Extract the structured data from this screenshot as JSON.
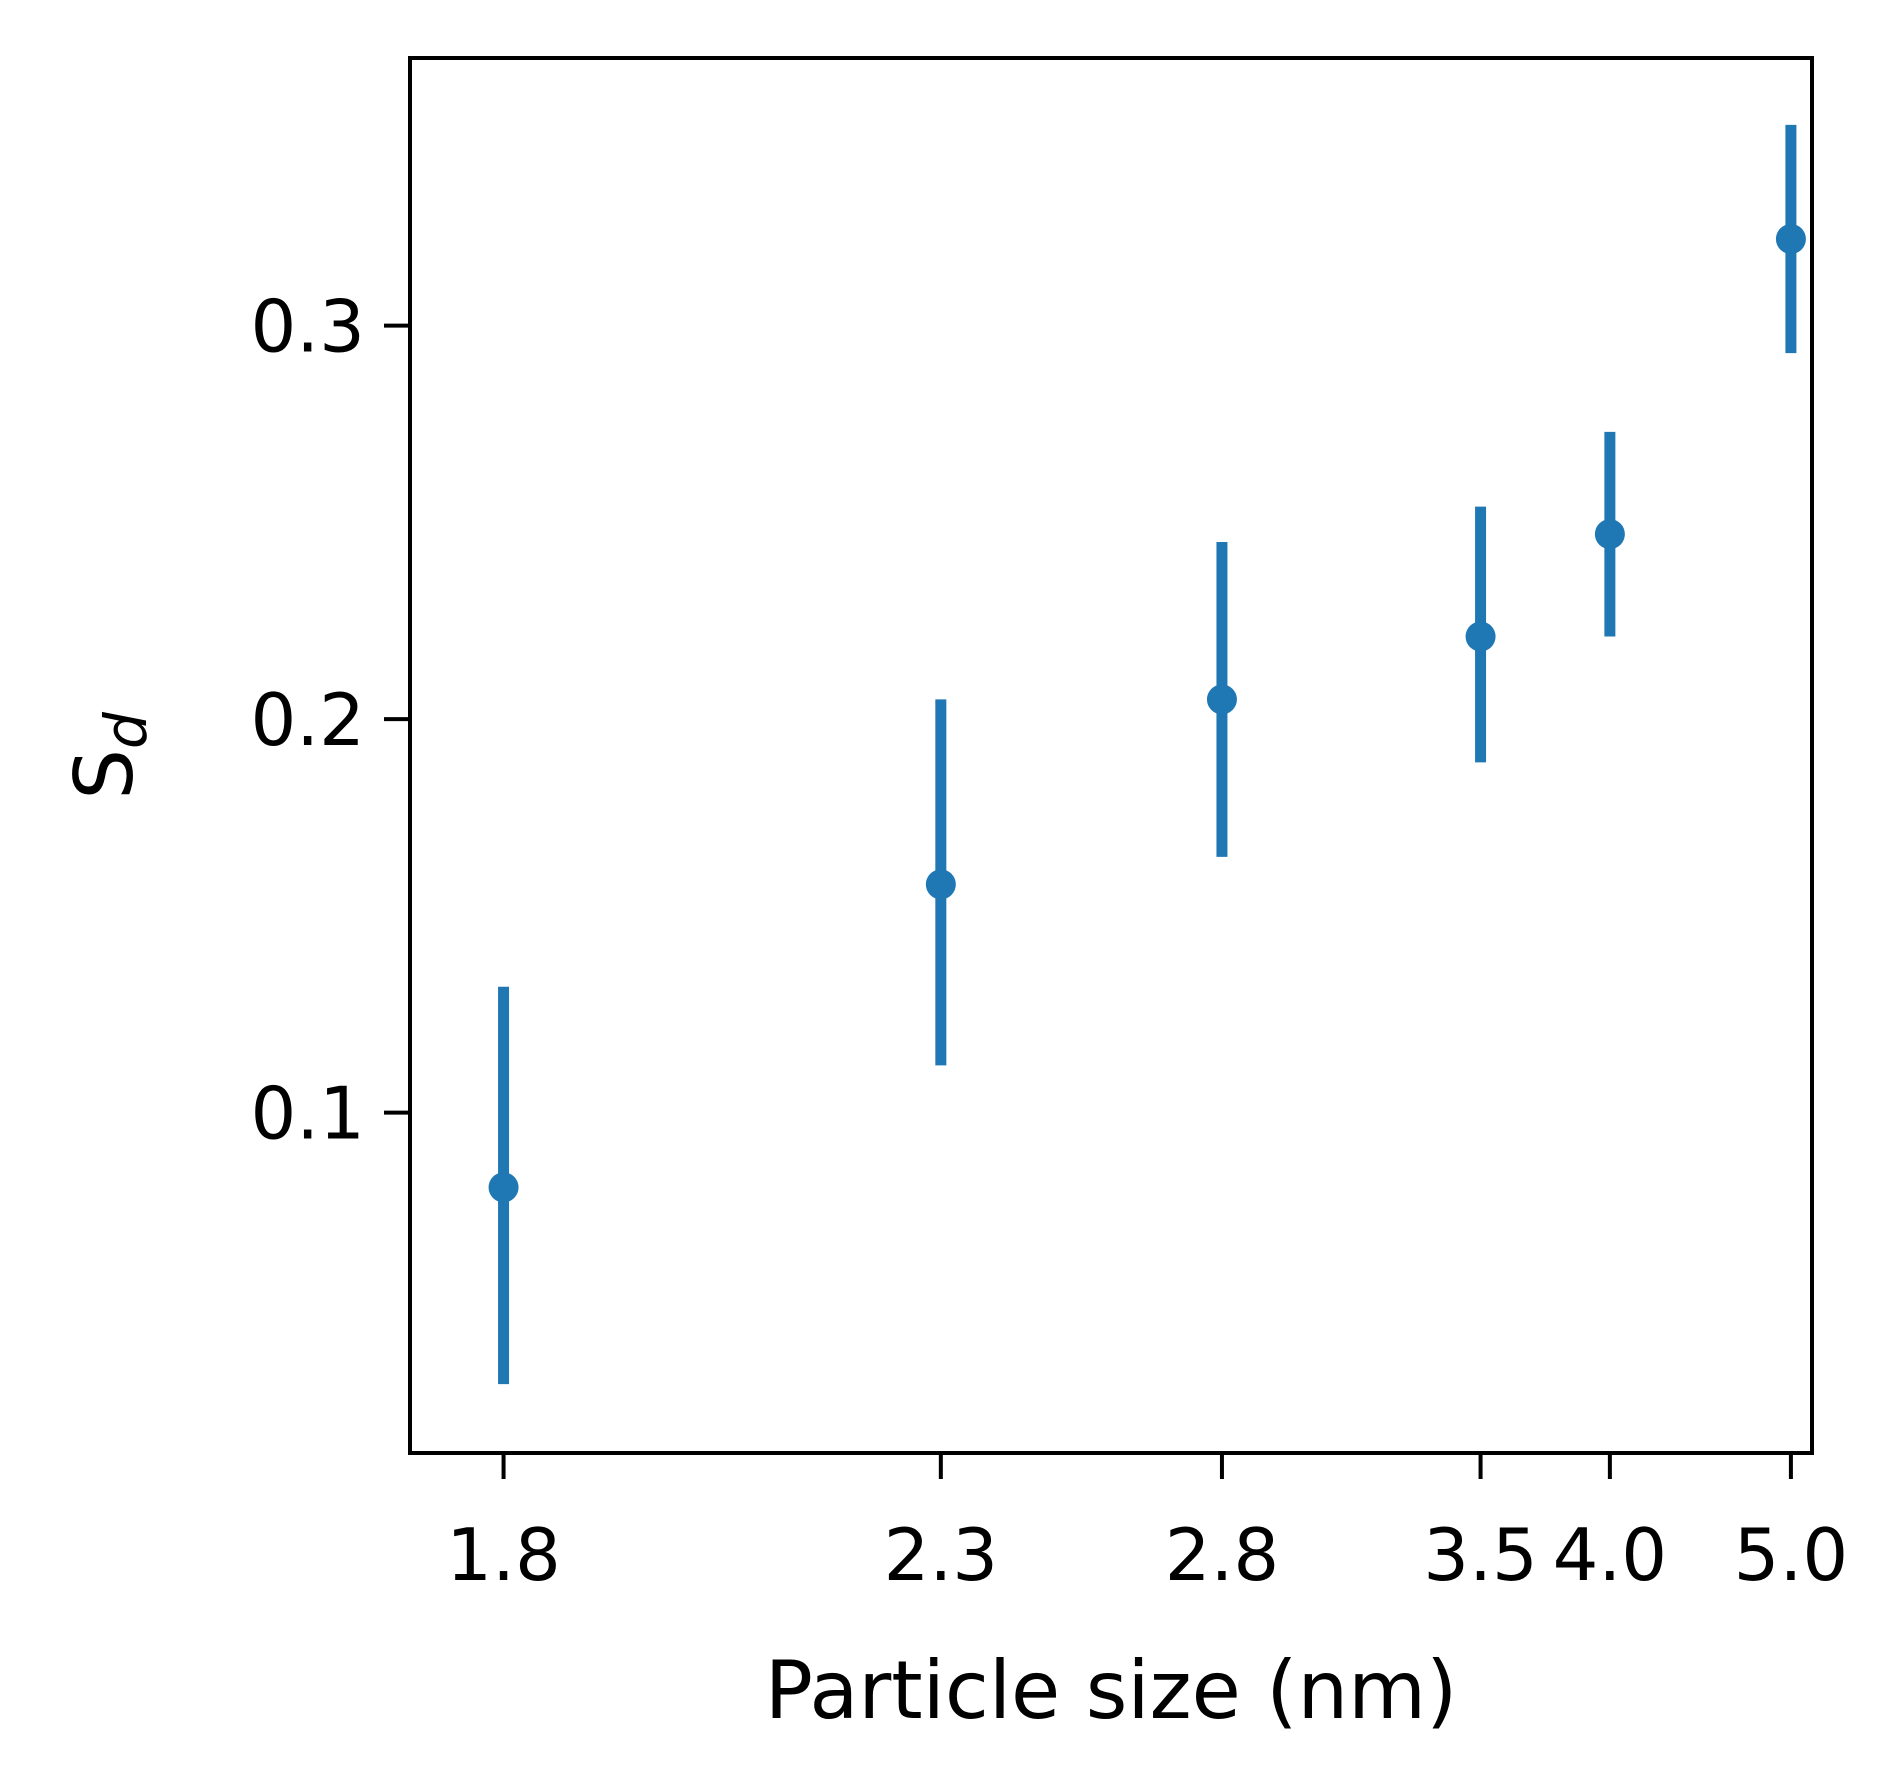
{
  "chart_data": {
    "type": "scatter",
    "xlabel": "Particle size (nm)",
    "ylabel_base": "S",
    "ylabel_sub": "d",
    "x_scale": "reciprocal",
    "xlim": [
      1.72,
      5.15
    ],
    "ylim": [
      0.0135,
      0.368
    ],
    "x_ticks": [
      1.8,
      2.3,
      2.8,
      3.5,
      4.0,
      5.0
    ],
    "x_tick_labels": [
      "1.8",
      "2.3",
      "2.8",
      "3.5",
      "4.0",
      "5.0"
    ],
    "y_ticks": [
      0.1,
      0.2,
      0.3
    ],
    "y_tick_labels": [
      "0.1",
      "0.2",
      "0.3"
    ],
    "grid": false,
    "legend": "none",
    "marker_color": "#1f77b4",
    "points": [
      {
        "x": 1.8,
        "y": 0.081,
        "err_low": 0.031,
        "err_high": 0.132
      },
      {
        "x": 2.3,
        "y": 0.158,
        "err_low": 0.112,
        "err_high": 0.205
      },
      {
        "x": 2.8,
        "y": 0.205,
        "err_low": 0.165,
        "err_high": 0.245
      },
      {
        "x": 3.5,
        "y": 0.221,
        "err_low": 0.189,
        "err_high": 0.254
      },
      {
        "x": 4.0,
        "y": 0.247,
        "err_low": 0.221,
        "err_high": 0.273
      },
      {
        "x": 5.0,
        "y": 0.322,
        "err_low": 0.293,
        "err_high": 0.351
      }
    ]
  }
}
